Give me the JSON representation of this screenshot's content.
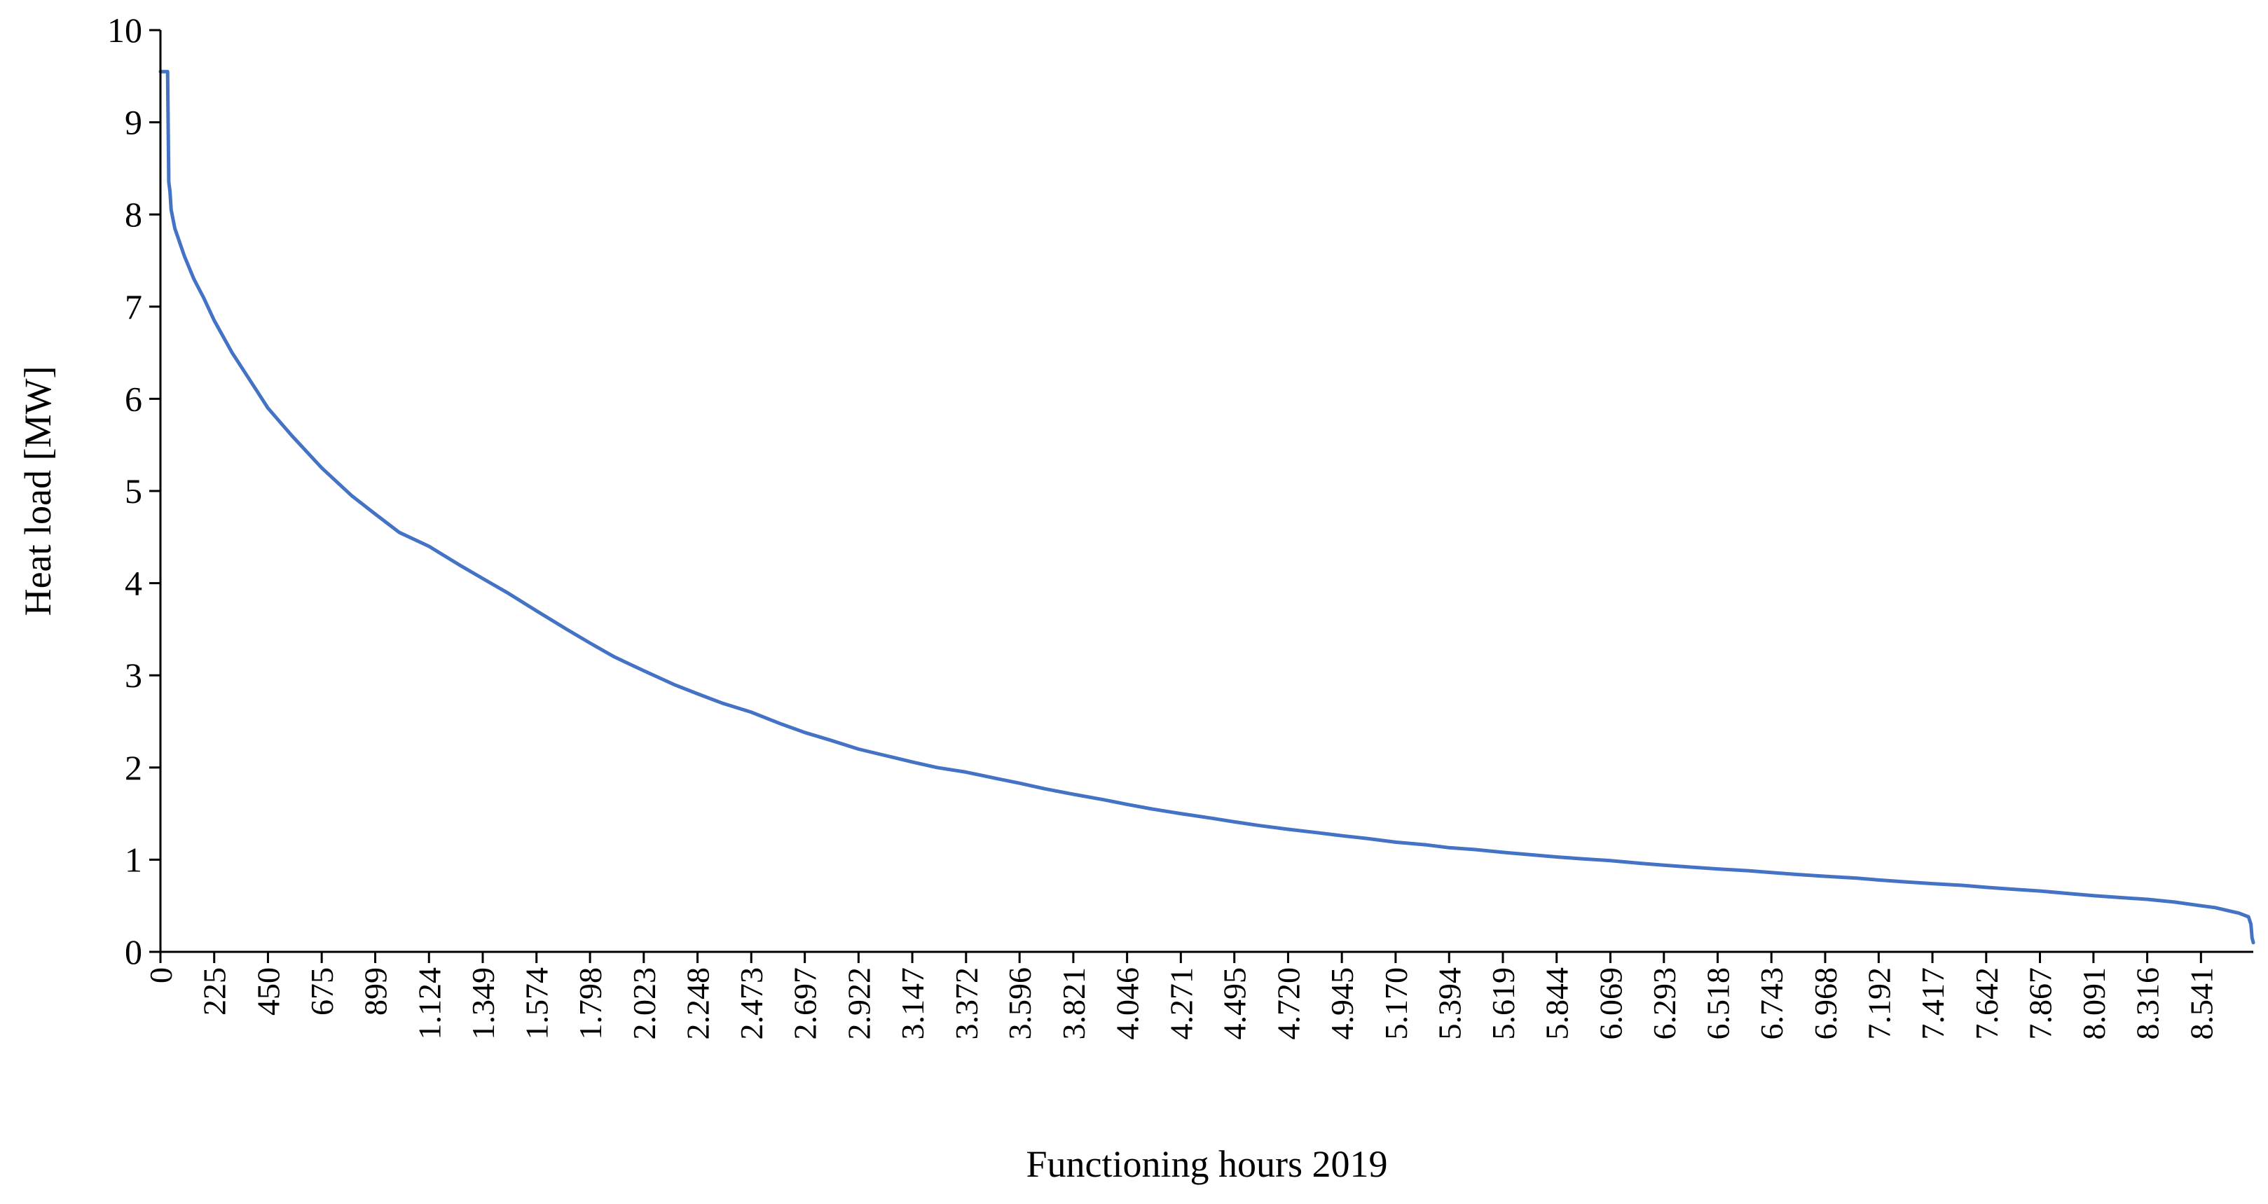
{
  "chart_data": {
    "type": "line",
    "title": "",
    "xlabel": "Functioning hours 2019",
    "ylabel": "Heat load [MW]",
    "xlim": [
      0,
      8760
    ],
    "ylim": [
      0,
      10
    ],
    "yticks": [
      "0",
      "1",
      "2",
      "3",
      "4",
      "5",
      "6",
      "7",
      "8",
      "9",
      "10"
    ],
    "xticks": [
      {
        "value": 0,
        "label": "0"
      },
      {
        "value": 225,
        "label": "225"
      },
      {
        "value": 450,
        "label": "450"
      },
      {
        "value": 675,
        "label": "675"
      },
      {
        "value": 899,
        "label": "899"
      },
      {
        "value": 1124,
        "label": "1.124"
      },
      {
        "value": 1349,
        "label": "1.349"
      },
      {
        "value": 1574,
        "label": "1.574"
      },
      {
        "value": 1798,
        "label": "1.798"
      },
      {
        "value": 2023,
        "label": "2.023"
      },
      {
        "value": 2248,
        "label": "2.248"
      },
      {
        "value": 2473,
        "label": "2.473"
      },
      {
        "value": 2697,
        "label": "2.697"
      },
      {
        "value": 2922,
        "label": "2.922"
      },
      {
        "value": 3147,
        "label": "3.147"
      },
      {
        "value": 3372,
        "label": "3.372"
      },
      {
        "value": 3596,
        "label": "3.596"
      },
      {
        "value": 3821,
        "label": "3.821"
      },
      {
        "value": 4046,
        "label": "4.046"
      },
      {
        "value": 4271,
        "label": "4.271"
      },
      {
        "value": 4495,
        "label": "4.495"
      },
      {
        "value": 4720,
        "label": "4.720"
      },
      {
        "value": 4945,
        "label": "4.945"
      },
      {
        "value": 5170,
        "label": "5.170"
      },
      {
        "value": 5394,
        "label": "5.394"
      },
      {
        "value": 5619,
        "label": "5.619"
      },
      {
        "value": 5844,
        "label": "5.844"
      },
      {
        "value": 6069,
        "label": "6.069"
      },
      {
        "value": 6293,
        "label": "6.293"
      },
      {
        "value": 6518,
        "label": "6.518"
      },
      {
        "value": 6743,
        "label": "6.743"
      },
      {
        "value": 6968,
        "label": "6.968"
      },
      {
        "value": 7192,
        "label": "7.192"
      },
      {
        "value": 7417,
        "label": "7.417"
      },
      {
        "value": 7642,
        "label": "7.642"
      },
      {
        "value": 7867,
        "label": "7.867"
      },
      {
        "value": 8091,
        "label": "8.091"
      },
      {
        "value": 8316,
        "label": "8.316"
      },
      {
        "value": 8541,
        "label": "8.541"
      }
    ],
    "grid": false,
    "legend": "none",
    "series": [
      {
        "color": "#4472C4",
        "x": [
          0,
          30,
          35,
          40,
          45,
          60,
          80,
          100,
          140,
          180,
          225,
          300,
          400,
          450,
          550,
          675,
          800,
          899,
          1000,
          1124,
          1250,
          1349,
          1450,
          1574,
          1700,
          1798,
          1900,
          2023,
          2150,
          2248,
          2350,
          2473,
          2600,
          2697,
          2800,
          2922,
          3050,
          3147,
          3250,
          3372,
          3500,
          3596,
          3700,
          3821,
          3950,
          4046,
          4150,
          4271,
          4400,
          4495,
          4600,
          4720,
          4850,
          4945,
          5050,
          5170,
          5300,
          5394,
          5500,
          5619,
          5750,
          5844,
          5950,
          6069,
          6200,
          6293,
          6400,
          6518,
          6650,
          6743,
          6850,
          6968,
          7100,
          7192,
          7300,
          7417,
          7550,
          7642,
          7750,
          7867,
          8000,
          8091,
          8200,
          8316,
          8430,
          8541,
          8600,
          8650,
          8700,
          8740,
          8750,
          8755,
          8760
        ],
        "y": [
          9.55,
          9.55,
          8.35,
          8.25,
          8.05,
          7.85,
          7.7,
          7.55,
          7.3,
          7.1,
          6.85,
          6.5,
          6.1,
          5.9,
          5.6,
          5.25,
          4.95,
          4.75,
          4.55,
          4.4,
          4.2,
          4.05,
          3.9,
          3.7,
          3.5,
          3.35,
          3.2,
          3.05,
          2.9,
          2.8,
          2.7,
          2.6,
          2.47,
          2.38,
          2.3,
          2.2,
          2.12,
          2.06,
          2.0,
          1.95,
          1.88,
          1.83,
          1.77,
          1.71,
          1.65,
          1.6,
          1.55,
          1.5,
          1.45,
          1.41,
          1.37,
          1.33,
          1.29,
          1.26,
          1.23,
          1.19,
          1.16,
          1.13,
          1.11,
          1.08,
          1.05,
          1.03,
          1.01,
          0.99,
          0.96,
          0.94,
          0.92,
          0.9,
          0.88,
          0.86,
          0.84,
          0.82,
          0.8,
          0.78,
          0.76,
          0.74,
          0.72,
          0.7,
          0.68,
          0.66,
          0.63,
          0.61,
          0.59,
          0.57,
          0.54,
          0.5,
          0.48,
          0.45,
          0.42,
          0.38,
          0.3,
          0.15,
          0.1
        ]
      }
    ]
  }
}
